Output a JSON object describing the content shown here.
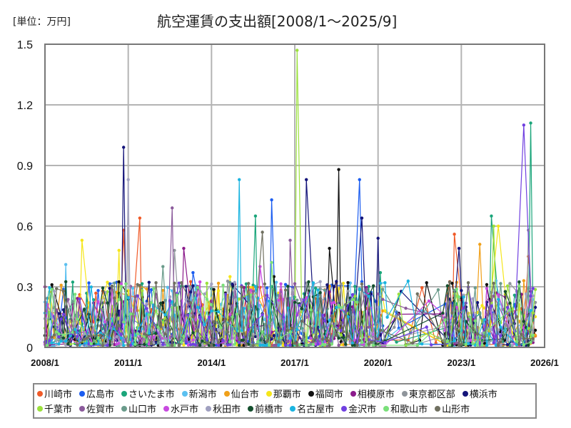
{
  "unit_label": "[単位：万円]",
  "title": "航空運賃の支出額[2008/1～2025/9]",
  "chart_data": {
    "type": "line",
    "title": "航空運賃の支出額[2008/1～2025/9]",
    "unit": "万円",
    "xlabel": "",
    "ylabel": "",
    "ylim": [
      0,
      1.5
    ],
    "xlim": [
      "2008/1",
      "2026/1"
    ],
    "grid": true,
    "legend_position": "bottom",
    "yticks": [
      "0",
      "0.3",
      "0.6",
      "0.9",
      "1.2",
      "1.5"
    ],
    "xticks": [
      "2008/1",
      "2011/1",
      "2014/1",
      "2017/1",
      "2020/1",
      "2023/1",
      "2026/1"
    ],
    "series": [
      {
        "name": "川崎市",
        "color": "#f05a28",
        "peaks": [
          {
            "x": "2010/11",
            "y": 0.58
          },
          {
            "x": "2011/6",
            "y": 0.64
          },
          {
            "x": "2022/10",
            "y": 0.56
          },
          {
            "x": "2025/6",
            "y": 0.45
          }
        ]
      },
      {
        "name": "広島市",
        "color": "#1a5cf0",
        "peaks": [
          {
            "x": "2013/5",
            "y": 0.37
          },
          {
            "x": "2016/3",
            "y": 0.73
          },
          {
            "x": "2019/5",
            "y": 0.83
          }
        ]
      },
      {
        "name": "さいたま市",
        "color": "#1aa57a",
        "peaks": [
          {
            "x": "2015/8",
            "y": 0.65
          },
          {
            "x": "2020/2",
            "y": 0.37
          },
          {
            "x": "2024/2",
            "y": 0.65
          },
          {
            "x": "2025/7",
            "y": 1.11
          }
        ]
      },
      {
        "name": "新潟市",
        "color": "#5bc0f0",
        "peaks": [
          {
            "x": "2008/10",
            "y": 0.41
          },
          {
            "x": "2024/4",
            "y": 0.33
          }
        ]
      },
      {
        "name": "仙台市",
        "color": "#f0a01a",
        "peaks": [
          {
            "x": "2023/9",
            "y": 0.51
          },
          {
            "x": "2025/4",
            "y": 0.33
          }
        ]
      },
      {
        "name": "那覇市",
        "color": "#f5e61a",
        "peaks": [
          {
            "x": "2009/5",
            "y": 0.53
          },
          {
            "x": "2010/9",
            "y": 0.48
          },
          {
            "x": "2014/9",
            "y": 0.35
          },
          {
            "x": "2024/5",
            "y": 0.6
          }
        ]
      },
      {
        "name": "福岡市",
        "color": "#111111",
        "peaks": [
          {
            "x": "2016/4",
            "y": 0.35
          },
          {
            "x": "2018/4",
            "y": 0.49
          },
          {
            "x": "2018/8",
            "y": 0.88
          },
          {
            "x": "2021/10",
            "y": 0.32
          }
        ]
      },
      {
        "name": "相模原市",
        "color": "#8b1a8b",
        "peaks": [
          {
            "x": "2013/1",
            "y": 0.49
          },
          {
            "x": "2022/2",
            "y": 0.3
          }
        ]
      },
      {
        "name": "東京都区部",
        "color": "#8f959b",
        "peaks": [
          {
            "x": "2012/9",
            "y": 0.48
          },
          {
            "x": "2025/6",
            "y": 0.58
          }
        ]
      },
      {
        "name": "横浜市",
        "color": "#14147a",
        "peaks": [
          {
            "x": "2010/11",
            "y": 0.99
          },
          {
            "x": "2017/6",
            "y": 0.83
          },
          {
            "x": "2019/6",
            "y": 0.64
          },
          {
            "x": "2020/1",
            "y": 0.54
          },
          {
            "x": "2022/12",
            "y": 0.49
          }
        ]
      },
      {
        "name": "千葉市",
        "color": "#9be03c",
        "peaks": [
          {
            "x": "2017/2",
            "y": 1.47
          },
          {
            "x": "2024/3",
            "y": 0.6
          }
        ]
      },
      {
        "name": "佐賀市",
        "color": "#8b5a9b",
        "peaks": [
          {
            "x": "2012/8",
            "y": 0.69
          },
          {
            "x": "2016/11",
            "y": 0.53
          }
        ]
      },
      {
        "name": "山口市",
        "color": "#6a9b8b",
        "peaks": [
          {
            "x": "2012/4",
            "y": 0.4
          }
        ]
      },
      {
        "name": "水戸市",
        "color": "#c84ae0",
        "peaks": [
          {
            "x": "2015/10",
            "y": 0.4
          }
        ]
      },
      {
        "name": "秋田市",
        "color": "#a0a0c0",
        "peaks": [
          {
            "x": "2011/1",
            "y": 0.83
          }
        ]
      },
      {
        "name": "前橋市",
        "color": "#144f2e",
        "peaks": [
          {
            "x": "2017/9",
            "y": 0.25
          }
        ]
      },
      {
        "name": "名古屋市",
        "color": "#1ab4e0",
        "peaks": [
          {
            "x": "2015/1",
            "y": 0.83
          }
        ]
      },
      {
        "name": "金沢市",
        "color": "#7040e0",
        "peaks": [
          {
            "x": "2025/4",
            "y": 1.1
          }
        ]
      },
      {
        "name": "和歌山市",
        "color": "#7ae07a",
        "peaks": [
          {
            "x": "2016/3",
            "y": 0.42
          }
        ]
      },
      {
        "name": "山形市",
        "color": "#707060",
        "peaks": [
          {
            "x": "2015/11",
            "y": 0.57
          }
        ]
      }
    ]
  },
  "legend": {
    "row1": [
      {
        "label": "川崎市",
        "color": "#f05a28"
      },
      {
        "label": "広島市",
        "color": "#1a5cf0"
      },
      {
        "label": "さいたま市",
        "color": "#1aa57a"
      },
      {
        "label": "新潟市",
        "color": "#5bc0f0"
      },
      {
        "label": "仙台市",
        "color": "#f0a01a"
      },
      {
        "label": "那覇市",
        "color": "#f5e61a"
      },
      {
        "label": "福岡市",
        "color": "#111111"
      },
      {
        "label": "相模原市",
        "color": "#8b1a8b"
      },
      {
        "label": "東京都区部",
        "color": "#8f959b"
      },
      {
        "label": "横浜市",
        "color": "#14147a"
      }
    ],
    "row2": [
      {
        "label": "千葉市",
        "color": "#9be03c"
      },
      {
        "label": "佐賀市",
        "color": "#8b5a9b"
      },
      {
        "label": "山口市",
        "color": "#6a9b8b"
      },
      {
        "label": "水戸市",
        "color": "#c84ae0"
      },
      {
        "label": "秋田市",
        "color": "#a0a0c0"
      },
      {
        "label": "前橋市",
        "color": "#144f2e"
      },
      {
        "label": "名古屋市",
        "color": "#1ab4e0"
      },
      {
        "label": "金沢市",
        "color": "#7040e0"
      },
      {
        "label": "和歌山市",
        "color": "#7ae07a"
      },
      {
        "label": "山形市",
        "color": "#707060"
      }
    ]
  }
}
